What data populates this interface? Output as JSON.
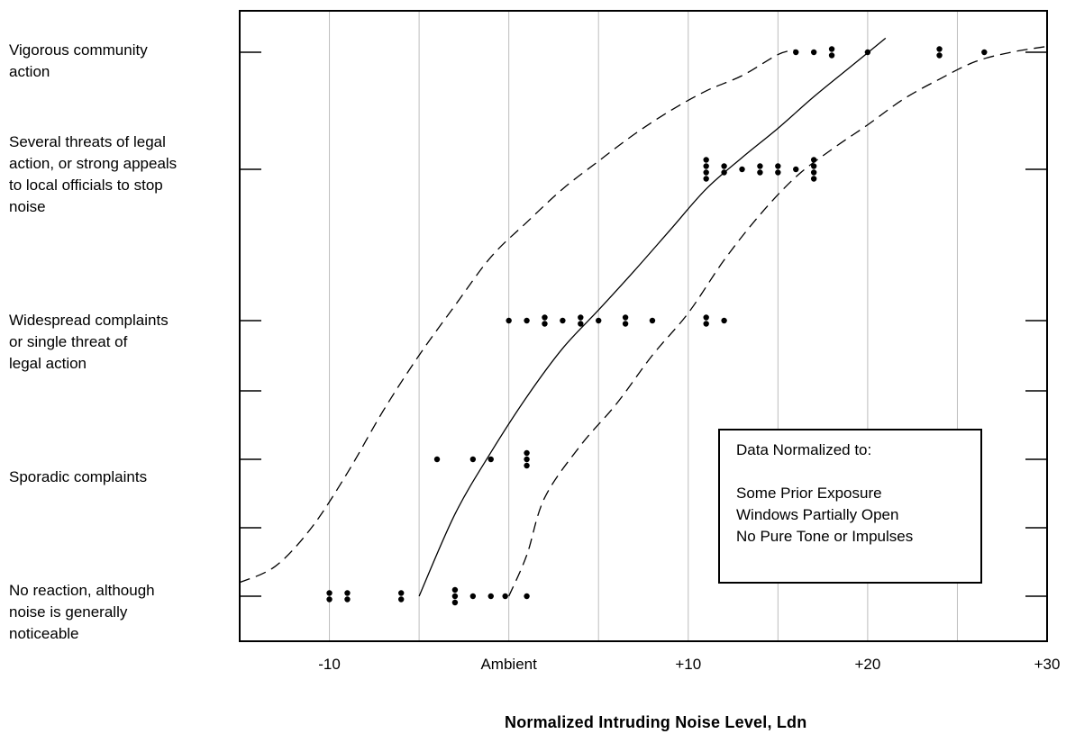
{
  "chart_data": {
    "type": "scatter",
    "xlabel": "Normalized Intruding Noise Level, Ldn",
    "xlim": [
      -15,
      30
    ],
    "xticks": [
      {
        "value": -10,
        "label": "-10"
      },
      {
        "value": 0,
        "label": "Ambient"
      },
      {
        "value": 10,
        "label": "+10"
      },
      {
        "value": 20,
        "label": "+20"
      },
      {
        "value": 30,
        "label": "+30"
      }
    ],
    "yticks_minor": [
      1.5,
      3.5
    ],
    "y_levels": [
      {
        "level": 0,
        "label": "No reaction, although\nnoise is generally\nnoticeable"
      },
      {
        "level": 1,
        "label": "Sporadic complaints"
      },
      {
        "level": 2,
        "label": "Widespread complaints\nor single threat of\nlegal action"
      },
      {
        "level": 3,
        "label": "Several threats of legal\naction, or strong appeals\nto local officials to stop\nnoise"
      },
      {
        "level": 4,
        "label": "Vigorous community\naction"
      }
    ],
    "grid": true,
    "legend_lines": [
      "Data Normalized to:",
      "",
      "Some Prior Exposure",
      "Windows Partially Open",
      "No Pure Tone or Impulses"
    ],
    "points": [
      {
        "x": -10,
        "y": 0,
        "n": 2
      },
      {
        "x": -9,
        "y": 0,
        "n": 2
      },
      {
        "x": -6,
        "y": 0,
        "n": 2
      },
      {
        "x": -3,
        "y": 0,
        "n": 3
      },
      {
        "x": -2,
        "y": 0,
        "n": 1
      },
      {
        "x": -1,
        "y": 0,
        "n": 1
      },
      {
        "x": -0.2,
        "y": 0,
        "n": 1
      },
      {
        "x": 1,
        "y": 0,
        "n": 1
      },
      {
        "x": -4,
        "y": 1,
        "n": 1
      },
      {
        "x": -2,
        "y": 1,
        "n": 1
      },
      {
        "x": -1,
        "y": 1,
        "n": 1
      },
      {
        "x": 1,
        "y": 1,
        "n": 3
      },
      {
        "x": 0,
        "y": 2,
        "n": 1
      },
      {
        "x": 1,
        "y": 2,
        "n": 1
      },
      {
        "x": 2,
        "y": 2,
        "n": 2
      },
      {
        "x": 3,
        "y": 2,
        "n": 1
      },
      {
        "x": 4,
        "y": 2,
        "n": 2
      },
      {
        "x": 5,
        "y": 2,
        "n": 1
      },
      {
        "x": 6.5,
        "y": 2,
        "n": 2
      },
      {
        "x": 8,
        "y": 2,
        "n": 1
      },
      {
        "x": 11,
        "y": 2,
        "n": 2
      },
      {
        "x": 12,
        "y": 2,
        "n": 1
      },
      {
        "x": 11,
        "y": 3,
        "n": 4
      },
      {
        "x": 12,
        "y": 3,
        "n": 2
      },
      {
        "x": 13,
        "y": 3,
        "n": 1
      },
      {
        "x": 14,
        "y": 3,
        "n": 2
      },
      {
        "x": 15,
        "y": 3,
        "n": 2
      },
      {
        "x": 16,
        "y": 3,
        "n": 1
      },
      {
        "x": 17,
        "y": 3,
        "n": 4
      },
      {
        "x": 16,
        "y": 4,
        "n": 1
      },
      {
        "x": 17,
        "y": 4,
        "n": 1
      },
      {
        "x": 18,
        "y": 4,
        "n": 2
      },
      {
        "x": 20,
        "y": 4,
        "n": 1
      },
      {
        "x": 24,
        "y": 4,
        "n": 2
      },
      {
        "x": 26.5,
        "y": 4,
        "n": 1
      }
    ],
    "series": [
      {
        "style": "solid",
        "x": [
          -5,
          -3,
          -1,
          1,
          3,
          5,
          7,
          9,
          11,
          13,
          15,
          17,
          19,
          21
        ],
        "y": [
          0,
          0.6,
          1.05,
          1.45,
          1.8,
          2.07,
          2.33,
          2.6,
          2.87,
          3.1,
          3.35,
          3.62,
          3.87,
          4.12
        ]
      },
      {
        "style": "dashed",
        "x": [
          -15,
          -13,
          -11,
          -9,
          -7,
          -5,
          -3,
          -1,
          1,
          3,
          5,
          7,
          9,
          11,
          13,
          15,
          16
        ],
        "y": [
          0.1,
          0.22,
          0.5,
          0.9,
          1.35,
          1.75,
          2.1,
          2.42,
          2.65,
          2.87,
          3.07,
          3.3,
          3.5,
          3.67,
          3.8,
          3.98,
          4.02
        ]
      },
      {
        "style": "dashed",
        "x": [
          0,
          1,
          2,
          4,
          6,
          8,
          10,
          12,
          14,
          16,
          18,
          20,
          22,
          24,
          26,
          28,
          30
        ],
        "y": [
          0,
          0.3,
          0.72,
          1.1,
          1.4,
          1.75,
          2.05,
          2.4,
          2.7,
          2.95,
          3.17,
          3.38,
          3.6,
          3.77,
          3.92,
          4.0,
          4.05
        ]
      }
    ]
  }
}
